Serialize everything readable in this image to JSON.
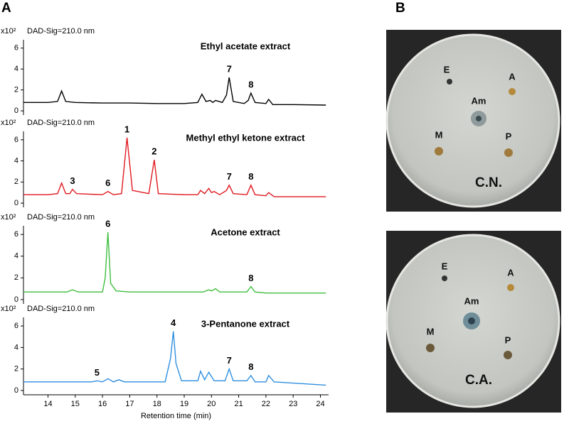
{
  "panel_labels": [
    "A",
    "B"
  ],
  "chart_data": [
    {
      "type": "line",
      "title": "Ethyl acetate extract",
      "y_unit_label": "x10²",
      "signal": "DAD-Sig=210.0 nm",
      "color": "#000000",
      "x": [
        13.1,
        14.0,
        14.35,
        14.5,
        14.65,
        15.0,
        16.0,
        17.0,
        18.0,
        19.0,
        19.5,
        19.65,
        19.8,
        19.95,
        20.05,
        20.15,
        20.4,
        20.55,
        20.65,
        20.8,
        21.2,
        21.35,
        21.45,
        21.6,
        22.0,
        22.1,
        22.25,
        23.0,
        24.2
      ],
      "values": [
        0.8,
        0.8,
        0.9,
        1.9,
        0.9,
        0.8,
        0.75,
        0.75,
        0.7,
        0.7,
        0.8,
        1.6,
        0.9,
        1.0,
        0.8,
        1.0,
        0.8,
        1.5,
        3.2,
        0.9,
        0.7,
        1.0,
        1.7,
        0.8,
        0.7,
        1.1,
        0.6,
        0.6,
        0.55
      ],
      "xlim": [
        13.1,
        24.3
      ],
      "ylim": [
        -0.4,
        6.8
      ],
      "yticks": [
        0,
        2,
        4,
        6
      ],
      "annotations": [
        {
          "text": "7",
          "x": 20.65,
          "y": 3.2
        },
        {
          "text": "8",
          "x": 21.45,
          "y": 1.7
        }
      ]
    },
    {
      "type": "line",
      "title": "Methyl ethyl ketone extract",
      "y_unit_label": "x10²",
      "signal": "DAD-Sig=210.0 nm",
      "color": "#e0191f",
      "x": [
        13.1,
        14.0,
        14.35,
        14.5,
        14.65,
        14.8,
        14.9,
        15.05,
        16.0,
        16.2,
        16.4,
        16.7,
        16.9,
        17.1,
        17.7,
        17.9,
        18.05,
        19.0,
        19.5,
        19.6,
        19.75,
        19.9,
        20.0,
        20.1,
        20.3,
        20.55,
        20.65,
        20.8,
        21.3,
        21.45,
        21.6,
        22.0,
        22.1,
        22.3,
        24.2
      ],
      "values": [
        0.8,
        0.8,
        0.9,
        1.9,
        0.9,
        0.9,
        1.3,
        0.9,
        0.8,
        1.1,
        0.8,
        0.9,
        6.2,
        1.2,
        0.9,
        4.1,
        0.9,
        0.8,
        0.8,
        1.2,
        0.9,
        1.4,
        1.0,
        1.1,
        0.8,
        1.2,
        1.7,
        0.9,
        0.8,
        1.7,
        0.8,
        0.7,
        1.0,
        0.6,
        0.6
      ],
      "xlim": [
        13.1,
        24.3
      ],
      "ylim": [
        -0.4,
        6.8
      ],
      "yticks": [
        0,
        2,
        4,
        6
      ],
      "annotations": [
        {
          "text": "3",
          "x": 14.9,
          "y": 1.3
        },
        {
          "text": "6",
          "x": 16.2,
          "y": 1.1
        },
        {
          "text": "1",
          "x": 16.9,
          "y": 6.2
        },
        {
          "text": "2",
          "x": 17.9,
          "y": 4.1
        },
        {
          "text": "7",
          "x": 20.65,
          "y": 1.7
        },
        {
          "text": "8",
          "x": 21.45,
          "y": 1.7
        }
      ]
    },
    {
      "type": "line",
      "title": "Acetone extract",
      "y_unit_label": "x10²",
      "signal": "DAD-Sig=210.0 nm",
      "color": "#3fbf3f",
      "x": [
        13.1,
        14.7,
        14.9,
        15.1,
        16.0,
        16.1,
        16.2,
        16.3,
        16.5,
        17.0,
        19.7,
        19.9,
        20.0,
        20.15,
        20.3,
        21.3,
        21.45,
        21.6,
        22.0,
        24.2
      ],
      "values": [
        0.7,
        0.7,
        0.9,
        0.7,
        0.7,
        2.0,
        6.2,
        1.5,
        0.8,
        0.7,
        0.7,
        0.9,
        0.8,
        1.0,
        0.7,
        0.7,
        1.2,
        0.7,
        0.6,
        0.6
      ],
      "xlim": [
        13.1,
        24.3
      ],
      "ylim": [
        -0.4,
        6.8
      ],
      "yticks": [
        0,
        2,
        4,
        6
      ],
      "annotations": [
        {
          "text": "6",
          "x": 16.2,
          "y": 6.2
        },
        {
          "text": "8",
          "x": 21.45,
          "y": 1.2
        }
      ]
    },
    {
      "type": "line",
      "title": "3-Pentanone extract",
      "y_unit_label": "x10²",
      "signal": "DAD-Sig=210.0 nm",
      "color": "#2f8fdf",
      "x": [
        13.1,
        15.6,
        15.8,
        16.0,
        16.2,
        16.4,
        16.6,
        16.8,
        18.3,
        18.5,
        18.6,
        18.7,
        18.9,
        19.5,
        19.6,
        19.75,
        19.9,
        20.1,
        20.5,
        20.65,
        20.8,
        21.3,
        21.45,
        21.6,
        22.0,
        22.1,
        22.3,
        24.2
      ],
      "values": [
        0.8,
        0.8,
        0.9,
        0.8,
        1.1,
        0.8,
        1.0,
        0.8,
        0.8,
        3.0,
        5.5,
        2.5,
        0.9,
        0.9,
        1.8,
        1.0,
        1.7,
        0.9,
        0.9,
        2.0,
        0.9,
        0.9,
        1.4,
        0.8,
        0.8,
        1.4,
        0.8,
        0.5
      ],
      "xlim": [
        13.1,
        24.3
      ],
      "ylim": [
        -0.4,
        6.8
      ],
      "yticks": [
        0,
        2,
        4,
        6
      ],
      "xticks": [
        14,
        15,
        16,
        17,
        18,
        19,
        20,
        21,
        22,
        23,
        24
      ],
      "x_label": "Retention time (min)",
      "annotations": [
        {
          "text": "5",
          "x": 15.8,
          "y": 0.9
        },
        {
          "text": "4",
          "x": 18.6,
          "y": 5.5
        },
        {
          "text": "7",
          "x": 20.65,
          "y": 2.0
        },
        {
          "text": "8",
          "x": 21.45,
          "y": 1.4
        }
      ]
    }
  ],
  "photos": [
    {
      "caption": "C.N.",
      "wells": [
        "E",
        "A",
        "Am",
        "M",
        "P"
      ]
    },
    {
      "caption": "C.A.",
      "wells": [
        "E",
        "A",
        "Am",
        "M",
        "P"
      ]
    }
  ]
}
